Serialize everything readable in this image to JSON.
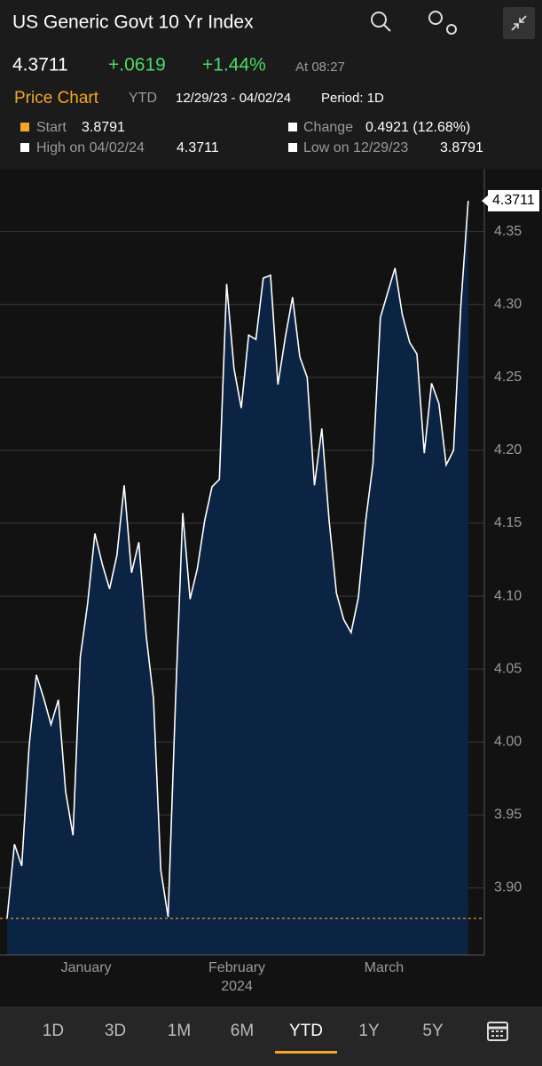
{
  "header": {
    "title": "US Generic Govt 10 Yr Index",
    "price": "4.3711",
    "change": "+.0619",
    "change_pct": "+1.44%",
    "time": "At 08:27"
  },
  "chart_header": {
    "label": "Price Chart",
    "range": "YTD",
    "dates": "12/29/23 - 04/02/24",
    "period": "Period: 1D"
  },
  "stats": [
    {
      "label": "Start",
      "value": "3.8791"
    },
    {
      "label": "Change",
      "value": "0.4921 (12.68%)"
    },
    {
      "label": "High on 04/02/24",
      "value": "4.3711"
    },
    {
      "label": "Low on 12/29/23",
      "value": "3.8791"
    }
  ],
  "chart_data": {
    "type": "area",
    "color": "#ffffff",
    "fill": "#0c2444",
    "reference_line": 3.8791,
    "reference_color": "#f5a623",
    "values": [
      3.8791,
      3.93,
      3.915,
      3.997,
      4.046,
      4.03,
      4.012,
      4.029,
      3.966,
      3.936,
      4.058,
      4.095,
      4.143,
      4.122,
      4.105,
      4.128,
      4.176,
      4.116,
      4.137,
      4.073,
      4.03,
      3.912,
      3.88,
      4.027,
      4.157,
      4.098,
      4.119,
      4.152,
      4.175,
      4.18,
      4.314,
      4.256,
      4.229,
      4.279,
      4.276,
      4.318,
      4.32,
      4.245,
      4.277,
      4.305,
      4.264,
      4.25,
      4.176,
      4.215,
      4.152,
      4.102,
      4.084,
      4.075,
      4.099,
      4.152,
      4.191,
      4.291,
      4.308,
      4.325,
      4.293,
      4.274,
      4.266,
      4.198,
      4.246,
      4.232,
      4.19,
      4.2,
      4.299,
      4.3711
    ],
    "xticks": [
      {
        "value": 10.8,
        "label": "January"
      },
      {
        "value": 31.4,
        "label": "February"
      },
      {
        "value": 51.5,
        "label": "March"
      }
    ],
    "x_year": "2024",
    "ylim": [
      3.854,
      4.393
    ],
    "yticks": [
      {
        "value": 3.9,
        "label": "3.90"
      },
      3.95,
      {
        "value": 4.0,
        "label": "4.00"
      },
      4.05,
      {
        "value": 4.1,
        "label": "4.10"
      },
      4.15,
      {
        "value": 4.2,
        "label": "4.20"
      },
      4.25,
      {
        "value": 4.3,
        "label": "4.30"
      },
      4.35
    ],
    "grid": true
  },
  "periods": [
    "1D",
    "3D",
    "1M",
    "6M",
    "YTD",
    "1Y",
    "5Y"
  ],
  "active_period": "YTD"
}
